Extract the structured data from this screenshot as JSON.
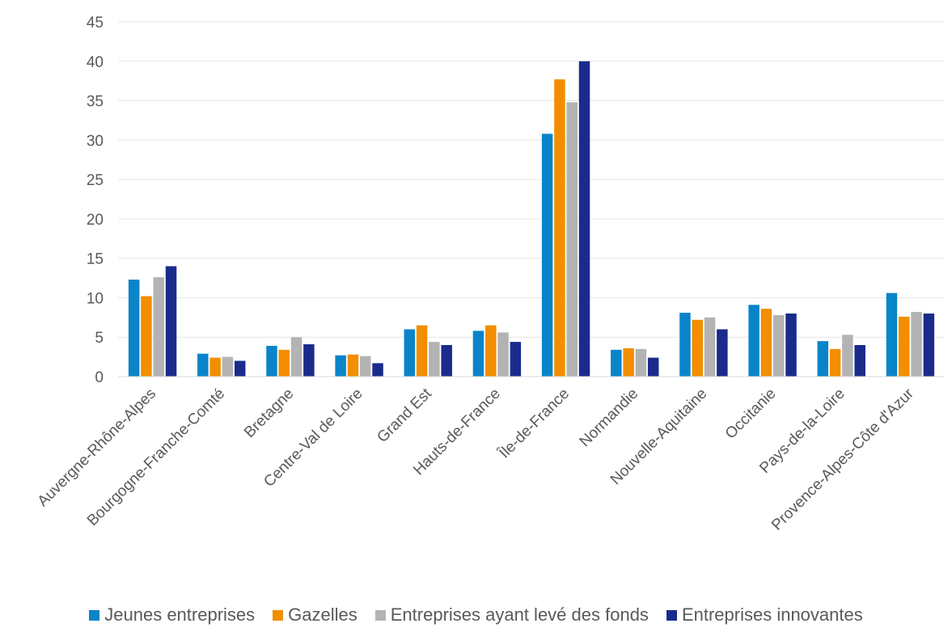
{
  "chart_data": {
    "type": "bar",
    "title": "",
    "xlabel": "",
    "ylabel": "",
    "ylim": [
      0,
      45
    ],
    "yticks": [
      0,
      5,
      10,
      15,
      20,
      25,
      30,
      35,
      40,
      45
    ],
    "grid": true,
    "legend_position": "bottom",
    "categories": [
      "Auvergne-Rhône-Alpes",
      "Bourgogne-Franche-Comté",
      "Bretagne",
      "Centre-Val de Loire",
      "Grand Est",
      "Hauts-de-France",
      "Île-de-France",
      "Normandie",
      "Nouvelle-Aquitaine",
      "Occitanie",
      "Pays-de-la-Loire",
      "Provence-Alpes-Côte d'Azur"
    ],
    "series": [
      {
        "name": "Jeunes entreprises",
        "color": "#0a84c9",
        "values": [
          12.3,
          2.9,
          3.9,
          2.7,
          6.0,
          5.8,
          30.8,
          3.4,
          8.1,
          9.1,
          4.5,
          10.6
        ]
      },
      {
        "name": "Gazelles",
        "color": "#f28e00",
        "values": [
          10.2,
          2.4,
          3.4,
          2.8,
          6.5,
          6.5,
          37.7,
          3.6,
          7.2,
          8.6,
          3.5,
          7.6
        ]
      },
      {
        "name": "Entreprises ayant levé des fonds",
        "color": "#b3b3b3",
        "values": [
          12.6,
          2.5,
          5.0,
          2.6,
          4.4,
          5.6,
          34.8,
          3.5,
          7.5,
          7.8,
          5.3,
          8.2
        ]
      },
      {
        "name": "Entreprises innovantes",
        "color": "#1a2b8c",
        "values": [
          14.0,
          2.0,
          4.1,
          1.7,
          4.0,
          4.4,
          40.0,
          2.4,
          6.0,
          8.0,
          4.0,
          8.0
        ]
      }
    ]
  }
}
